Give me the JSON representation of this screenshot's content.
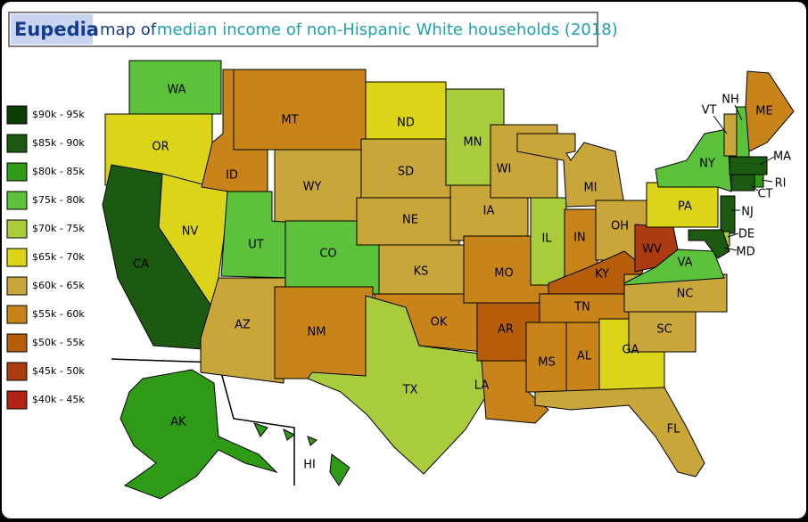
{
  "header": {
    "brand": "Eupedia",
    "prefix": "map of",
    "title": "median income of non-Hispanic White households (2018)"
  },
  "legend": [
    {
      "label": "$90k - 95k",
      "color": "#0b3d05"
    },
    {
      "label": "$85k - 90k",
      "color": "#1c5a12"
    },
    {
      "label": "$80k - 85k",
      "color": "#2e9a15"
    },
    {
      "label": "$75k - 80k",
      "color": "#5cc23c"
    },
    {
      "label": "$70k - 75k",
      "color": "#a8cc3c"
    },
    {
      "label": "$65k - 70k",
      "color": "#dcd418"
    },
    {
      "label": "$60k - 65k",
      "color": "#c9a63a"
    },
    {
      "label": "$55k - 60k",
      "color": "#c88418"
    },
    {
      "label": "$50k - 55k",
      "color": "#b65e0c"
    },
    {
      "label": "$45k - 50k",
      "color": "#aa3c10"
    },
    {
      "label": "$40k - 45k",
      "color": "#b32414"
    }
  ],
  "states": [
    {
      "label": "WA",
      "color": "#5cc23c"
    },
    {
      "label": "OR",
      "color": "#dcd418"
    },
    {
      "label": "CA",
      "color": "#1c5a12"
    },
    {
      "label": "NV",
      "color": "#dcd418"
    },
    {
      "label": "ID",
      "color": "#c88418"
    },
    {
      "label": "MT",
      "color": "#c88418"
    },
    {
      "label": "WY",
      "color": "#c9a63a"
    },
    {
      "label": "UT",
      "color": "#5cc23c"
    },
    {
      "label": "CO",
      "color": "#5cc23c"
    },
    {
      "label": "AZ",
      "color": "#c9a63a"
    },
    {
      "label": "NM",
      "color": "#c88418"
    },
    {
      "label": "ND",
      "color": "#dcd418"
    },
    {
      "label": "SD",
      "color": "#c9a63a"
    },
    {
      "label": "NE",
      "color": "#c9a63a"
    },
    {
      "label": "KS",
      "color": "#c9a63a"
    },
    {
      "label": "OK",
      "color": "#c88418"
    },
    {
      "label": "TX",
      "color": "#a8cc3c"
    },
    {
      "label": "MN",
      "color": "#a8cc3c"
    },
    {
      "label": "IA",
      "color": "#c9a63a"
    },
    {
      "label": "MO",
      "color": "#c88418"
    },
    {
      "label": "AR",
      "color": "#b65e0c"
    },
    {
      "label": "LA",
      "color": "#c88418"
    },
    {
      "label": "WI",
      "color": "#c9a63a"
    },
    {
      "label": "IL",
      "color": "#a8cc3c"
    },
    {
      "label": "MI",
      "color": "#c9a63a"
    },
    {
      "label": "IN",
      "color": "#c88418"
    },
    {
      "label": "OH",
      "color": "#c9a63a"
    },
    {
      "label": "KY",
      "color": "#b65e0c"
    },
    {
      "label": "TN",
      "color": "#c88418"
    },
    {
      "label": "MS",
      "color": "#c88418"
    },
    {
      "label": "AL",
      "color": "#c88418"
    },
    {
      "label": "GA",
      "color": "#dcd418"
    },
    {
      "label": "FL",
      "color": "#c9a63a"
    },
    {
      "label": "SC",
      "color": "#c9a63a"
    },
    {
      "label": "NC",
      "color": "#c9a63a"
    },
    {
      "label": "VA",
      "color": "#5cc23c"
    },
    {
      "label": "WV",
      "color": "#aa3c10"
    },
    {
      "label": "PA",
      "color": "#dcd418"
    },
    {
      "label": "NY",
      "color": "#5cc23c"
    },
    {
      "label": "VT",
      "color": "#c9a63a"
    },
    {
      "label": "NH",
      "color": "#5cc23c"
    },
    {
      "label": "ME",
      "color": "#c88418"
    },
    {
      "label": "MA",
      "color": "#1c5a12"
    },
    {
      "label": "CT",
      "color": "#1c5a12"
    },
    {
      "label": "RI",
      "color": "#2e9a15"
    },
    {
      "label": "NJ",
      "color": "#1c5a12"
    },
    {
      "label": "DE",
      "color": "#a8cc3c"
    },
    {
      "label": "MD",
      "color": "#1c5a12"
    },
    {
      "label": "AK",
      "color": "#2e9a15"
    },
    {
      "label": "HI",
      "color": "#2e9a15"
    }
  ]
}
